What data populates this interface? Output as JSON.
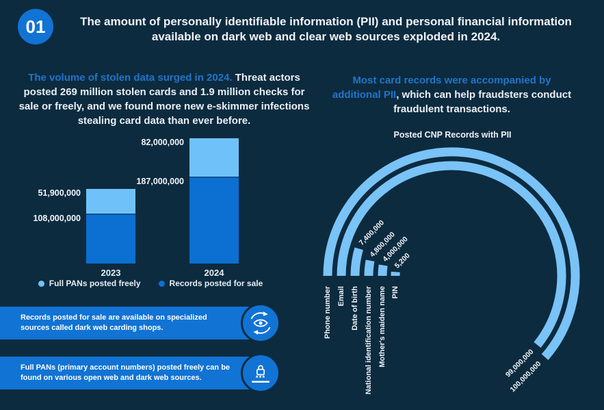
{
  "page": {
    "bg_color": "#0d2b3f",
    "accent_blue": "#1173d4",
    "light_blue": "#6fc2f9",
    "heading_blue": "#2174c9"
  },
  "header": {
    "badge": "01",
    "title": "The amount of personally identifiable information (PII) and personal financial information available on dark web and clear web sources exploded in 2024."
  },
  "intro_left": {
    "highlight": "The volume of stolen data surged in 2024.",
    "rest": " Threat actors posted 269 million stolen cards and 1.9 million checks for sale or freely, and we found more new e-skimmer infections stealing card data than ever before."
  },
  "intro_right": {
    "highlight": "Most card records were accompanied by additional PII",
    "rest": ", which can help fraudsters conduct fraudulent transactions."
  },
  "chart_data": [
    {
      "type": "bar",
      "variant": "stacked-column",
      "categories": [
        "2023",
        "2024"
      ],
      "series": [
        {
          "name": "Records posted for sale",
          "color": "#0b70d1",
          "values": [
            108000000,
            187000000
          ],
          "labels": [
            "108,000,000",
            "187,000,000"
          ]
        },
        {
          "name": "Full PANs posted freely",
          "color": "#6fc2f9",
          "values": [
            51900000,
            82000000
          ],
          "labels": [
            "51,900,000",
            "82,000,000"
          ]
        }
      ],
      "legend": [
        {
          "label": "Full PANs posted freely",
          "color": "#6fc2f9"
        },
        {
          "label": "Records posted for sale",
          "color": "#0b70d1"
        }
      ],
      "legend_position": "bottom",
      "grid": false,
      "ylim": [
        0,
        280000000
      ]
    },
    {
      "type": "radial-bar",
      "title": "Posted CNP Records with PII",
      "categories": [
        "Phone number",
        "Email",
        "Date of birth",
        "National identification number",
        "Mother's maiden name",
        "PIN"
      ],
      "values": [
        100000000,
        99000000,
        7400000,
        4800000,
        4000000,
        5200
      ],
      "labels": [
        "100,000,000",
        "99,000,000",
        "7,400,000",
        "4,800,000",
        "4,000,000",
        "5,200"
      ],
      "arc_color": "#79c3f7",
      "max_sweep_deg_per_100m": 221
    }
  ],
  "callouts": [
    {
      "text": "Records posted for sale are available on specialized sources called dark web carding shops.",
      "icon": "eye-monitor-icon"
    },
    {
      "text": "Full PANs (primary account numbers) posted freely can be found on various open web and dark web sources.",
      "icon": "password-lock-icon"
    }
  ]
}
